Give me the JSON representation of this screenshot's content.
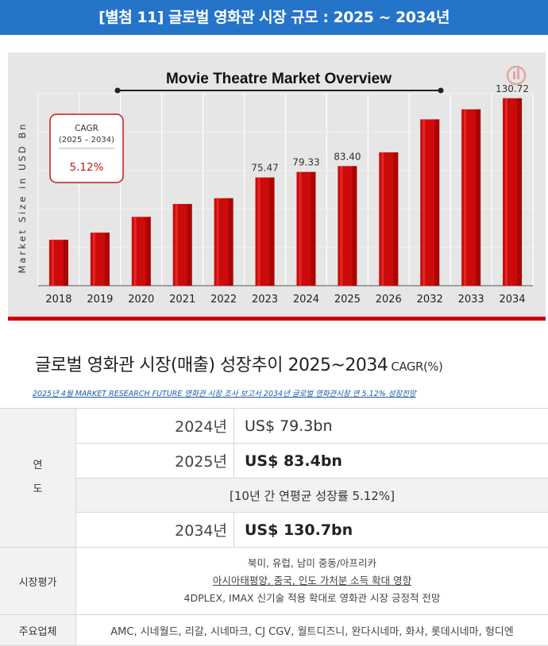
{
  "banner": {
    "title": "[별첨 11] 글로벌 영화관 시장 규모 : 2025 ~ 2034년"
  },
  "chart_data": {
    "type": "bar",
    "title": "Movie Theatre Market Overview",
    "ylabel": "Market Size in USD Bn",
    "xlabel": "",
    "categories": [
      "2018",
      "2019",
      "2020",
      "2021",
      "2022",
      "2023",
      "2024",
      "2025",
      "2026",
      "2032",
      "2033",
      "2034"
    ],
    "values": [
      32,
      37,
      48,
      57,
      61,
      75.47,
      79.33,
      83.4,
      93,
      116,
      123,
      130.72
    ],
    "data_labels": [
      "",
      "",
      "",
      "",
      "",
      "75.47",
      "79.33",
      "83.40",
      "",
      "",
      "",
      "130.72"
    ],
    "ylim": [
      0,
      145
    ],
    "grid": true,
    "bar_color": "#cc0a0a",
    "cagr": {
      "label": "CAGR",
      "period": "(2025 – 2034)",
      "value": "5.12%"
    }
  },
  "summary": {
    "title": "글로벌 영화관 시장(매출) 성장추이 2025~2034",
    "unit": "CAGR(%)",
    "source": "2025년 4월 MARKET RESEARCH FUTURE 영화관 시장 조사 보고서 2034년 글로벌 영화관시장 연 5.12% 성장전망"
  },
  "table": {
    "year_header": [
      "연",
      "도"
    ],
    "rows": [
      {
        "year": "2024년",
        "value": "US$ 79.3bn"
      },
      {
        "year": "2025년",
        "value": "US$ 83.4bn"
      },
      {
        "year": "2034년",
        "value": "US$ 130.7bn"
      }
    ],
    "growth_note": "[10년 간 연평균 성장률 5.12%]",
    "market_eval_header": "시장평가",
    "market_eval": [
      "북미, 유럽, 남미 중동/아프리카",
      "아시아태평양, 중국, 인도 가처분 소득 확대 영향",
      "4DPLEX, IMAX 신기술 적용 확대로 영화관 시장 긍정적 전망"
    ],
    "companies_header": "주요업체",
    "companies": "AMC, 시네월드, 리갈, 시네마크, CJ CGV, 월트디즈니, 완다시네마, 화샤, 롯데시네마, 헝디엔"
  }
}
